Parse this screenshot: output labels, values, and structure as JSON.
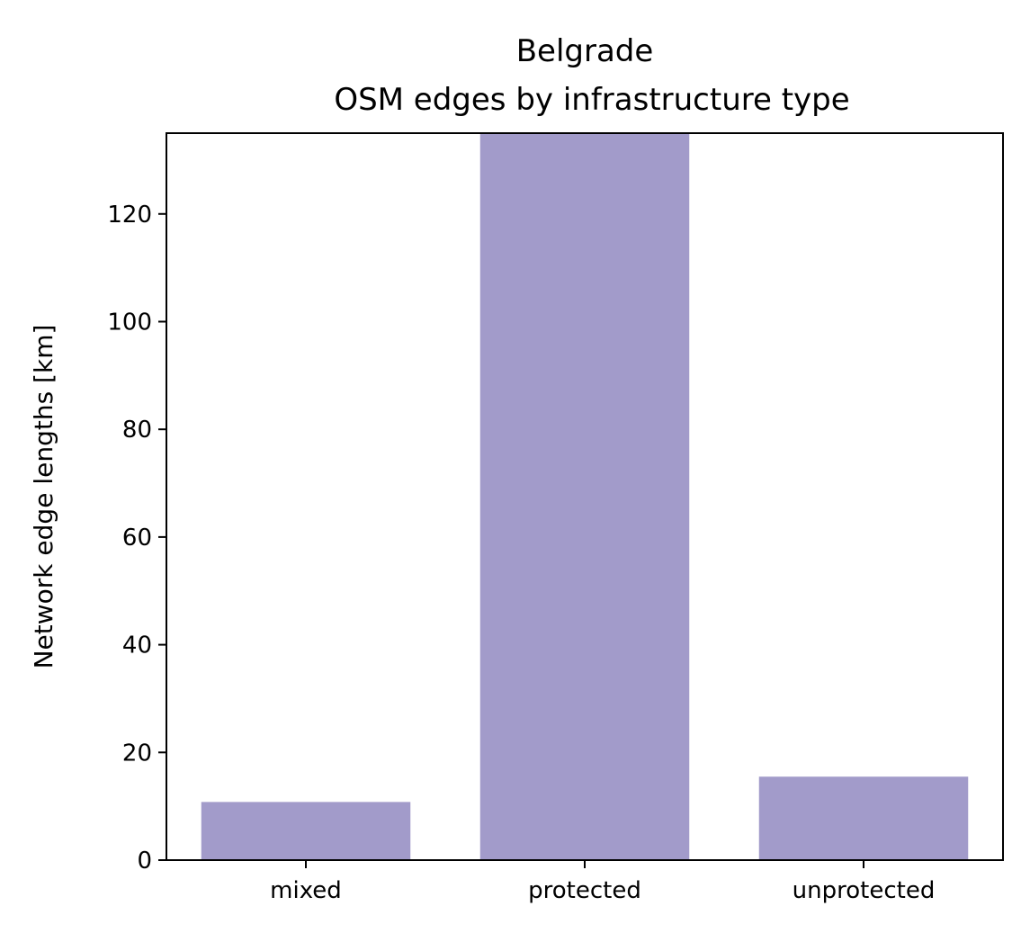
{
  "chart_data": {
    "type": "bar",
    "title": [
      "Belgrade",
      "OSM edges by infrastructure type"
    ],
    "xlabel": "",
    "ylabel": "Network edge lengths [km]",
    "categories": [
      "mixed",
      "protected",
      "unprotected"
    ],
    "values": [
      10.8,
      135,
      15.5
    ],
    "ylim": [
      0,
      135
    ],
    "yticks": [
      0,
      20,
      40,
      60,
      80,
      100,
      120
    ],
    "grid": false,
    "bar_color": "#a29bca"
  }
}
